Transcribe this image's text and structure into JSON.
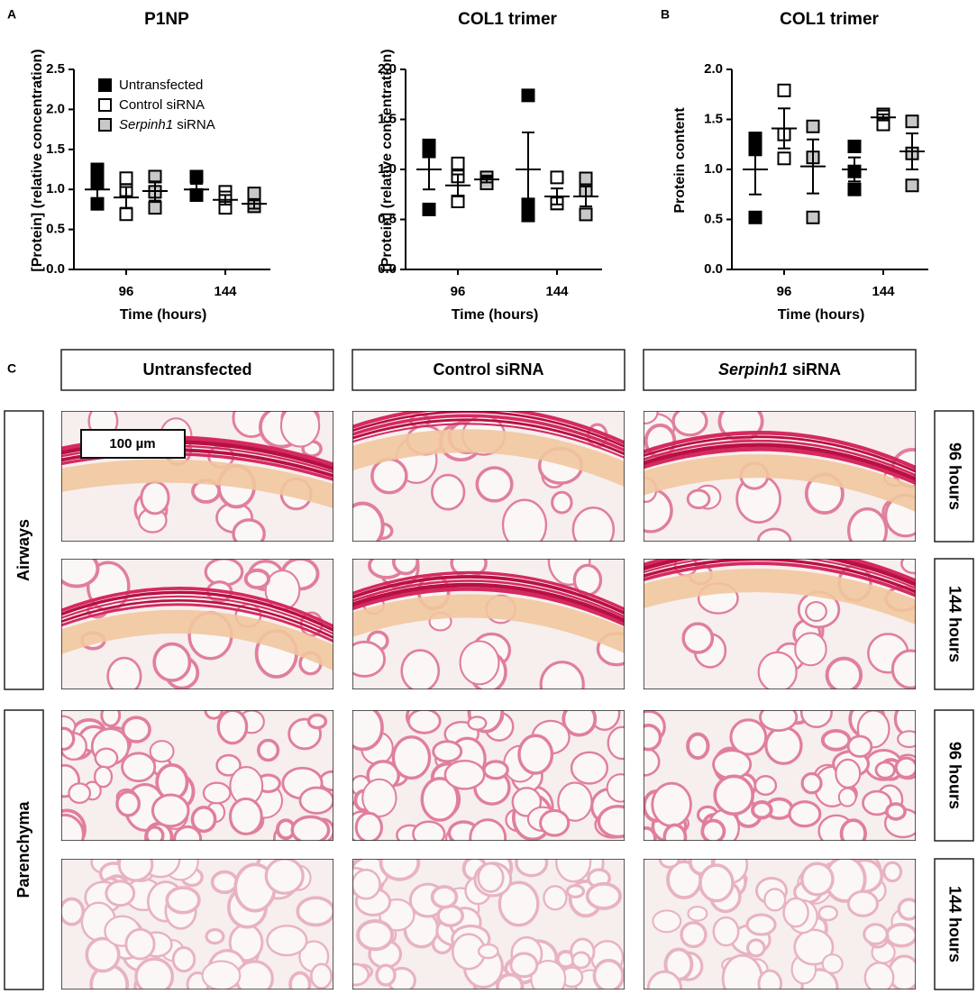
{
  "panel_labels": [
    "A",
    "B",
    "C"
  ],
  "chart_data": [
    {
      "type": "dotplot",
      "title": "P1NP",
      "x_label": "Time (hours)",
      "y_label": "[Protein] (relative concentration)",
      "categories": [
        "96",
        "144"
      ],
      "ylim": [
        0,
        2.5
      ],
      "yticks": [
        {
          "value": 0,
          "label": "0.0"
        },
        {
          "value": 0.5,
          "label": "0.5"
        },
        {
          "value": 1,
          "label": "1.0"
        },
        {
          "value": 1.5,
          "label": "1.5"
        },
        {
          "value": 2,
          "label": "2.0"
        },
        {
          "value": 2.5,
          "label": "2.5"
        }
      ],
      "legend": "upper-left",
      "series": [
        {
          "name": "Untransfected",
          "color": "#000000",
          "values": [
            [
              1.25,
              1.09,
              0.82
            ],
            [
              1.16,
              0.93,
              0.93
            ]
          ],
          "mean": [
            1.0,
            1.0
          ],
          "error": [
            0.12,
            0.07
          ]
        },
        {
          "name": "Control siRNA",
          "color": "#ffffff",
          "values": [
            [
              1.14,
              0.99,
              0.69
            ],
            [
              0.97,
              0.9,
              0.77
            ]
          ],
          "mean": [
            0.9,
            0.87
          ],
          "error": [
            0.13,
            0.06
          ]
        },
        {
          "name": "Serpinh1 siRNA",
          "color": "#c8c8c8",
          "values": [
            [
              1.16,
              0.97,
              0.77
            ],
            [
              0.95,
              0.79,
              0.79
            ]
          ],
          "mean": [
            0.98,
            0.82
          ],
          "error": [
            0.12,
            0.06
          ]
        }
      ]
    },
    {
      "type": "dotplot",
      "title": "COL1 trimer",
      "x_label": "Time (hours)",
      "y_label": "[Protein] (relative concentration)",
      "categories": [
        "96",
        "144"
      ],
      "ylim": [
        0,
        2
      ],
      "yticks": [
        {
          "value": 0,
          "label": "0.0"
        },
        {
          "value": 0.5,
          "label": "0.5"
        },
        {
          "value": 1,
          "label": "1.0"
        },
        {
          "value": 1.5,
          "label": "1.5"
        },
        {
          "value": 2,
          "label": "2.0"
        }
      ],
      "series": [
        {
          "color": "#000000",
          "values": [
            [
              1.24,
              1.18,
              0.6
            ],
            [
              1.74,
              0.65,
              0.54
            ]
          ],
          "mean": [
            1.0,
            1.0
          ],
          "error": [
            0.2,
            0.37
          ]
        },
        {
          "color": "#ffffff",
          "values": [
            [
              1.06,
              0.93,
              0.68
            ],
            [
              0.92,
              0.66,
              0.66
            ]
          ],
          "mean": [
            0.84,
            0.73
          ],
          "error": [
            0.11,
            0.08
          ]
        },
        {
          "color": "#c8c8c8",
          "values": [
            [
              0.92,
              0.88,
              0.86
            ],
            [
              0.91,
              0.79,
              0.55
            ]
          ],
          "mean": [
            0.9,
            0.73
          ],
          "error": [
            0.03,
            0.1
          ]
        }
      ]
    },
    {
      "type": "dotplot",
      "title": "COL1 trimer",
      "x_label": "Time (hours)",
      "y_label": "Protein content",
      "categories": [
        "96",
        "144"
      ],
      "ylim": [
        0,
        2
      ],
      "yticks": [
        {
          "value": 0,
          "label": "0.0"
        },
        {
          "value": 0.5,
          "label": "0.5"
        },
        {
          "value": 1,
          "label": "1.0"
        },
        {
          "value": 1.5,
          "label": "1.5"
        },
        {
          "value": 2,
          "label": "2.0"
        }
      ],
      "series": [
        {
          "color": "#000000",
          "values": [
            [
              1.31,
              1.2,
              0.52
            ],
            [
              1.23,
              0.98,
              0.8
            ]
          ],
          "mean": [
            1.0,
            1.0
          ],
          "error": [
            0.25,
            0.12
          ]
        },
        {
          "color": "#ffffff",
          "values": [
            [
              1.79,
              1.35,
              1.11
            ],
            [
              1.55,
              1.53,
              1.45
            ]
          ],
          "mean": [
            1.41,
            1.52
          ],
          "error": [
            0.2,
            0.03
          ]
        },
        {
          "color": "#c8c8c8",
          "values": [
            [
              1.43,
              1.12,
              0.52
            ],
            [
              1.48,
              1.16,
              0.84
            ]
          ],
          "mean": [
            1.03,
            1.18
          ],
          "error": [
            0.27,
            0.18
          ]
        }
      ]
    }
  ],
  "histology": {
    "columns": [
      "Untransfected",
      "Control siRNA",
      "Serpinh1 siRNA"
    ],
    "row_groups": [
      "Airways",
      "Parenchyma"
    ],
    "row_times": [
      "96 hours",
      "144 hours",
      "96 hours",
      "144 hours"
    ],
    "scale_bar": "100 µm"
  }
}
